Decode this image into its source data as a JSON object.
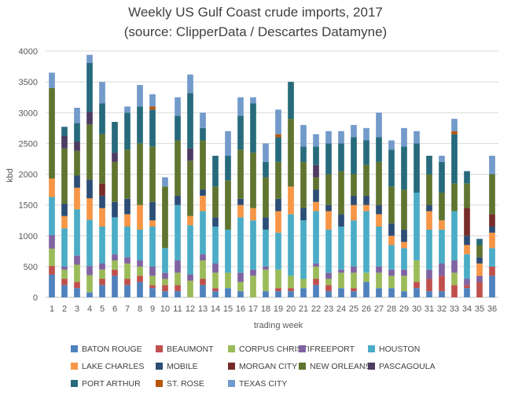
{
  "chart_data": {
    "type": "bar",
    "stacked": true,
    "title": "Weekly US Gulf Coast crude imports, 2017",
    "subtitle": "(source: ClipperData / Descartes Datamyne)",
    "xlabel": "trading week",
    "ylabel": "kbd",
    "ylim": [
      0,
      4000
    ],
    "yticks": [
      0,
      500,
      1000,
      1500,
      2000,
      2500,
      3000,
      3500,
      4000
    ],
    "grid": "horizontal",
    "legend_position": "bottom",
    "categories": [
      "1",
      "2",
      "3",
      "4",
      "5",
      "6",
      "7",
      "8",
      "9",
      "10",
      "11",
      "12",
      "13",
      "14",
      "15",
      "16",
      "17",
      "18",
      "19",
      "20",
      "21",
      "22",
      "23",
      "24",
      "25",
      "26",
      "27",
      "28",
      "29",
      "30",
      "31",
      "32",
      "33",
      "34",
      "35",
      "36"
    ],
    "series": [
      {
        "name": "BATON ROUGE",
        "color": "#4f81bd",
        "values": [
          370,
          200,
          150,
          80,
          200,
          350,
          200,
          250,
          150,
          100,
          100,
          0,
          200,
          100,
          150,
          100,
          0,
          100,
          100,
          100,
          150,
          200,
          100,
          150,
          100,
          250,
          150,
          150,
          100,
          150,
          100,
          100,
          0,
          150,
          0,
          350
        ]
      },
      {
        "name": "BEAUMONT",
        "color": "#c0504d",
        "values": [
          140,
          100,
          100,
          0,
          100,
          100,
          100,
          100,
          50,
          100,
          100,
          0,
          100,
          50,
          0,
          0,
          0,
          0,
          50,
          50,
          0,
          100,
          100,
          0,
          50,
          0,
          0,
          0,
          0,
          100,
          200,
          250,
          200,
          50,
          250,
          150
        ]
      },
      {
        "name": "CORPUS CHRISTI",
        "color": "#9bbb59",
        "values": [
          280,
          150,
          280,
          280,
          150,
          150,
          250,
          150,
          150,
          100,
          200,
          270,
          300,
          250,
          250,
          150,
          350,
          350,
          300,
          200,
          150,
          200,
          100,
          250,
          250,
          150,
          250,
          200,
          250,
          350,
          0,
          0,
          200,
          0,
          0,
          0
        ]
      },
      {
        "name": "FREEPORT",
        "color": "#8064a2",
        "values": [
          220,
          50,
          150,
          150,
          100,
          100,
          100,
          100,
          150,
          100,
          200,
          100,
          100,
          150,
          0,
          150,
          100,
          50,
          0,
          0,
          0,
          50,
          100,
          50,
          100,
          0,
          100,
          100,
          100,
          0,
          150,
          200,
          200,
          100,
          100,
          0
        ]
      },
      {
        "name": "HOUSTON",
        "color": "#4bacc6",
        "values": [
          620,
          620,
          750,
          750,
          600,
          600,
          500,
          500,
          650,
          400,
          900,
          800,
          700,
          600,
          700,
          900,
          800,
          600,
          600,
          1000,
          950,
          850,
          700,
          700,
          750,
          1000,
          650,
          400,
          350,
          1100,
          650,
          550,
          800,
          400,
          0,
          300
        ]
      },
      {
        "name": "LAKE CHARLES",
        "color": "#f79646",
        "values": [
          300,
          200,
          350,
          350,
          300,
          0,
          200,
          400,
          100,
          0,
          0,
          150,
          250,
          0,
          0,
          200,
          200,
          0,
          350,
          450,
          0,
          150,
          300,
          0,
          250,
          100,
          200,
          150,
          100,
          0,
          300,
          150,
          0,
          150,
          200,
          250
        ]
      },
      {
        "name": "MOBILE",
        "color": "#2c4d75",
        "values": [
          0,
          200,
          200,
          300,
          200,
          250,
          250,
          0,
          300,
          0,
          150,
          0,
          100,
          150,
          0,
          100,
          0,
          200,
          200,
          0,
          200,
          200,
          100,
          200,
          150,
          150,
          150,
          200,
          200,
          0,
          100,
          0,
          0,
          150,
          100,
          100
        ]
      },
      {
        "name": "MORGAN CITY",
        "color": "#772c2a",
        "values": [
          0,
          0,
          0,
          0,
          200,
          0,
          0,
          0,
          0,
          0,
          0,
          0,
          0,
          0,
          0,
          0,
          0,
          0,
          0,
          0,
          0,
          0,
          0,
          0,
          0,
          0,
          0,
          0,
          0,
          0,
          0,
          0,
          0,
          450,
          0,
          200
        ]
      },
      {
        "name": "NEW ORLEANS",
        "color": "#5f7530",
        "values": [
          1470,
          900,
          400,
          900,
          800,
          650,
          800,
          1000,
          900,
          1000,
          900,
          900,
          800,
          500,
          800,
          800,
          900,
          650,
          600,
          1100,
          750,
          200,
          500,
          700,
          350,
          500,
          700,
          600,
          650,
          0,
          500,
          450,
          450,
          400,
          200,
          650
        ]
      },
      {
        "name": "PASCAGOULA",
        "color": "#4d3b62",
        "values": [
          0,
          200,
          150,
          200,
          0,
          150,
          0,
          0,
          0,
          0,
          0,
          200,
          0,
          0,
          0,
          0,
          0,
          0,
          0,
          0,
          0,
          200,
          0,
          0,
          0,
          0,
          0,
          0,
          0,
          0,
          0,
          0,
          0,
          0,
          0,
          0
        ]
      },
      {
        "name": "PORT ARTHUR",
        "color": "#276a7c",
        "values": [
          0,
          150,
          300,
          800,
          500,
          500,
          600,
          600,
          600,
          0,
          400,
          900,
          200,
          500,
          400,
          550,
          800,
          250,
          400,
          600,
          250,
          300,
          500,
          450,
          600,
          400,
          400,
          600,
          700,
          800,
          300,
          500,
          800,
          200,
          100,
          0
        ]
      },
      {
        "name": "ST. ROSE",
        "color": "#b65708",
        "values": [
          0,
          0,
          0,
          0,
          0,
          0,
          0,
          0,
          50,
          0,
          0,
          0,
          0,
          0,
          0,
          0,
          0,
          0,
          50,
          0,
          0,
          0,
          0,
          0,
          0,
          0,
          0,
          0,
          0,
          0,
          0,
          0,
          50,
          0,
          0,
          0
        ]
      },
      {
        "name": "TEXAS CITY",
        "color": "#729aca",
        "values": [
          250,
          0,
          250,
          130,
          350,
          0,
          100,
          350,
          200,
          150,
          300,
          300,
          250,
          0,
          400,
          300,
          100,
          300,
          400,
          0,
          350,
          200,
          200,
          200,
          200,
          200,
          400,
          150,
          300,
          200,
          0,
          100,
          200,
          0,
          0,
          300
        ]
      }
    ]
  }
}
